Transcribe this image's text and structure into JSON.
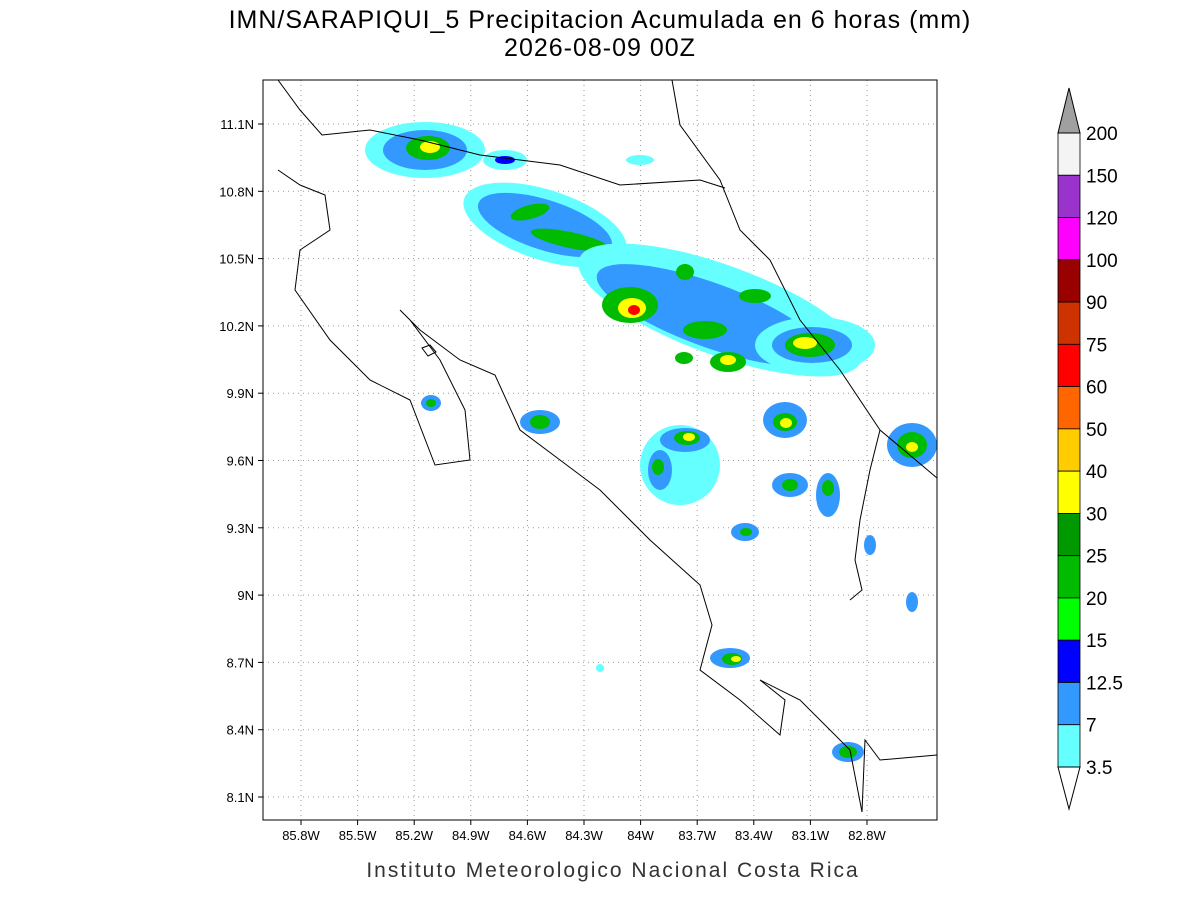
{
  "header": {
    "title": "IMN/SARAPIQUI_5 Precipitacion Acumulada en 6 horas (mm)",
    "subtitle": "2026-08-09 00Z"
  },
  "map": {
    "lon_ticks": [
      "85.8W",
      "85.5W",
      "85.2W",
      "84.9W",
      "84.6W",
      "84.3W",
      "84W",
      "83.7W",
      "83.4W",
      "83.1W",
      "82.8W"
    ],
    "lat_ticks": [
      "11.1N",
      "10.8N",
      "10.5N",
      "10.2N",
      "9.9N",
      "9.6N",
      "9.3N",
      "9N",
      "8.7N",
      "8.4N",
      "8.1N"
    ]
  },
  "colorbar": {
    "labels": [
      200,
      150,
      120,
      100,
      90,
      75,
      60,
      50,
      40,
      30,
      25,
      20,
      15,
      12.5,
      7,
      3.5
    ],
    "colors": [
      "#f4f4f4",
      "#9933cc",
      "#ff00ff",
      "#990000",
      "#cc3300",
      "#ff0000",
      "#ff6600",
      "#ffcc00",
      "#ffff00",
      "#009900",
      "#00bb00",
      "#00ff00",
      "#0000ff",
      "#3399ff",
      "#66ffff"
    ],
    "over_color": "#a0a0a0",
    "under_color": "#ffffff"
  },
  "footer": "Instituto Meteorologico Nacional Costa Rica"
}
